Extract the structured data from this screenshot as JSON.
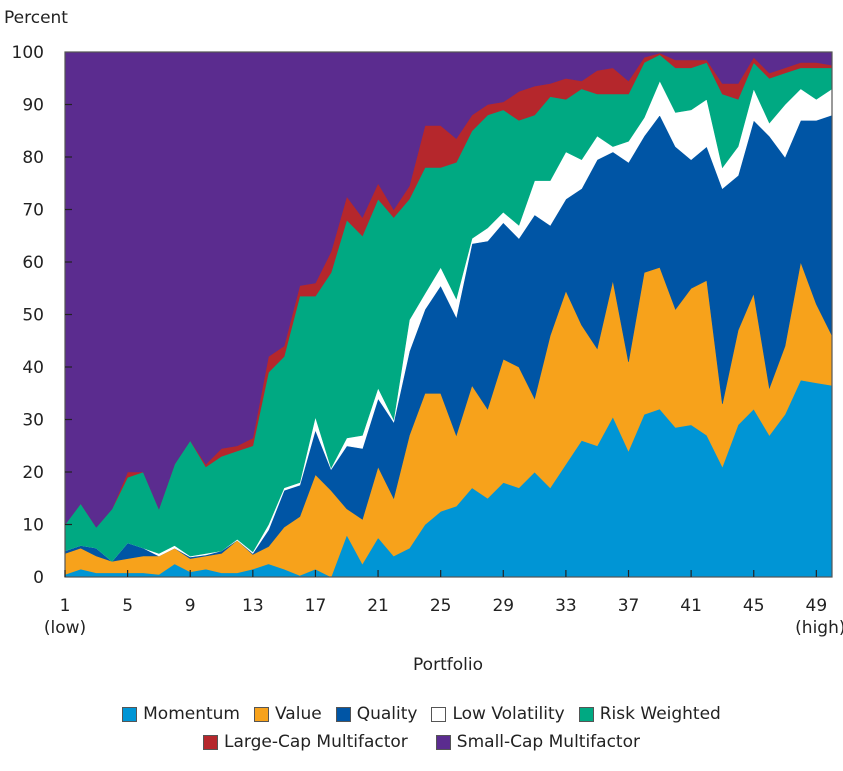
{
  "chart_data": {
    "type": "area",
    "stacked": true,
    "title": "",
    "ylabel": "Percent",
    "xlabel": "Portfolio",
    "ylim": [
      0,
      100
    ],
    "xlim": [
      1,
      50
    ],
    "yticks": [
      0,
      10,
      20,
      30,
      40,
      50,
      60,
      70,
      80,
      90,
      100
    ],
    "xticks": [
      1,
      5,
      9,
      13,
      17,
      21,
      25,
      29,
      33,
      37,
      41,
      45,
      49
    ],
    "xtick_sublabels": {
      "1": "(low)",
      "49": "(high)"
    },
    "grid": false,
    "legend_position": "bottom",
    "x": [
      1,
      2,
      3,
      4,
      5,
      6,
      7,
      8,
      9,
      10,
      11,
      12,
      13,
      14,
      15,
      16,
      17,
      18,
      19,
      20,
      21,
      22,
      23,
      24,
      25,
      26,
      27,
      28,
      29,
      30,
      31,
      32,
      33,
      34,
      35,
      36,
      37,
      38,
      39,
      40,
      41,
      42,
      43,
      44,
      45,
      46,
      47,
      48,
      49,
      50
    ],
    "series": [
      {
        "name": "Momentum",
        "color": "#0095d5",
        "values": [
          0.5,
          1.5,
          0.8,
          0.8,
          0.8,
          0.8,
          0.5,
          2.5,
          1,
          1.5,
          0.8,
          0.8,
          1.5,
          2.5,
          1.5,
          0.3,
          1.5,
          0,
          8,
          2.5,
          7.5,
          4,
          5.5,
          10,
          12.5,
          13.5,
          17,
          15,
          18,
          17,
          20,
          17,
          21.5,
          26,
          25,
          30.5,
          24,
          31,
          32,
          28.5,
          29,
          27,
          21,
          29,
          32,
          27,
          31,
          37.5,
          37,
          36.5
        ]
      },
      {
        "name": "Value",
        "color": "#f7a21b",
        "values": [
          4,
          4,
          3.2,
          2.2,
          2.7,
          3.2,
          3.5,
          3,
          2.5,
          2.5,
          3.7,
          6.2,
          2.8,
          3.3,
          8,
          11.2,
          18,
          16.5,
          5,
          8.5,
          13.5,
          11,
          21.5,
          25,
          22.5,
          13.5,
          19.5,
          17,
          23.5,
          23,
          14,
          29,
          33,
          22,
          18.5,
          26,
          17,
          27,
          27,
          22.5,
          26,
          29.5,
          12,
          18,
          22,
          9,
          13,
          22.5,
          15,
          9.5
        ]
      },
      {
        "name": "Quality",
        "color": "#0055a5",
        "values": [
          0.5,
          0.5,
          1.5,
          0,
          3,
          1.5,
          0,
          0,
          0.3,
          0.2,
          0.5,
          0,
          0.2,
          3.2,
          7,
          6,
          8.5,
          4,
          12,
          13.5,
          13,
          14.5,
          16,
          16,
          20.5,
          22.5,
          27,
          32,
          26,
          24.5,
          35,
          21,
          17.5,
          26,
          36,
          24.5,
          38,
          26,
          29,
          31,
          24.5,
          25.5,
          41,
          29.5,
          33,
          48,
          36,
          27,
          35,
          42
        ]
      },
      {
        "name": "Low Volatility",
        "color": "#ffffff",
        "values": [
          0,
          0,
          0,
          0,
          0,
          0,
          0.5,
          0.5,
          0.2,
          0.3,
          0,
          0.2,
          0.3,
          1,
          0.5,
          0.5,
          2.5,
          0.3,
          1.5,
          2.5,
          2,
          0.5,
          6,
          3,
          3.5,
          3.5,
          1,
          2.5,
          2,
          2.5,
          6.5,
          8.5,
          9,
          5.5,
          4.5,
          1,
          4,
          3.5,
          6.5,
          6.5,
          9.5,
          9,
          4,
          5.5,
          6,
          2.5,
          10,
          6,
          4,
          5
        ]
      },
      {
        "name": "Risk Weighted",
        "color": "#00a982",
        "values": [
          5,
          8,
          4,
          10,
          12.5,
          14.5,
          8.5,
          15.5,
          22,
          16.5,
          18,
          16.8,
          20.2,
          29,
          25,
          35.5,
          23,
          37.2,
          41.5,
          38,
          36,
          38.5,
          23,
          24,
          19,
          26,
          20.5,
          21.5,
          19.5,
          20,
          12.5,
          16,
          10,
          13.5,
          8,
          10,
          9,
          10.5,
          5,
          8.5,
          8,
          7,
          14,
          9,
          5,
          8.5,
          6,
          4,
          6,
          4
        ]
      },
      {
        "name": "Large-Cap Multifactor",
        "color": "#b5272c",
        "values": [
          0,
          0,
          0,
          0,
          1,
          0,
          0,
          0,
          0,
          0.5,
          1.5,
          1,
          1.5,
          3,
          2,
          2,
          2.5,
          4,
          4.5,
          3.5,
          3,
          1.5,
          2.5,
          8,
          8,
          4.5,
          3,
          2,
          1.5,
          5.5,
          5.5,
          2.5,
          4,
          1.5,
          4.5,
          5,
          2.5,
          1,
          0.3,
          1.5,
          1.5,
          0.5,
          2,
          3,
          1,
          1,
          1,
          1,
          1,
          0.5
        ]
      },
      {
        "name": "Small-Cap Multifactor",
        "color": "#5b2c8f",
        "values": [
          90,
          86,
          90.5,
          87,
          80,
          80,
          87,
          78.5,
          74,
          78.5,
          75.5,
          75,
          73.5,
          58,
          56,
          44.5,
          44,
          38,
          27.5,
          31.5,
          25,
          30,
          25.5,
          14,
          14,
          16.5,
          12,
          10,
          9.5,
          7.5,
          6.5,
          6,
          5,
          5.5,
          3.5,
          3,
          5.5,
          1,
          0.2,
          1.5,
          1.5,
          1.5,
          6,
          6,
          1,
          4,
          3,
          2,
          2,
          2.5
        ]
      }
    ]
  }
}
